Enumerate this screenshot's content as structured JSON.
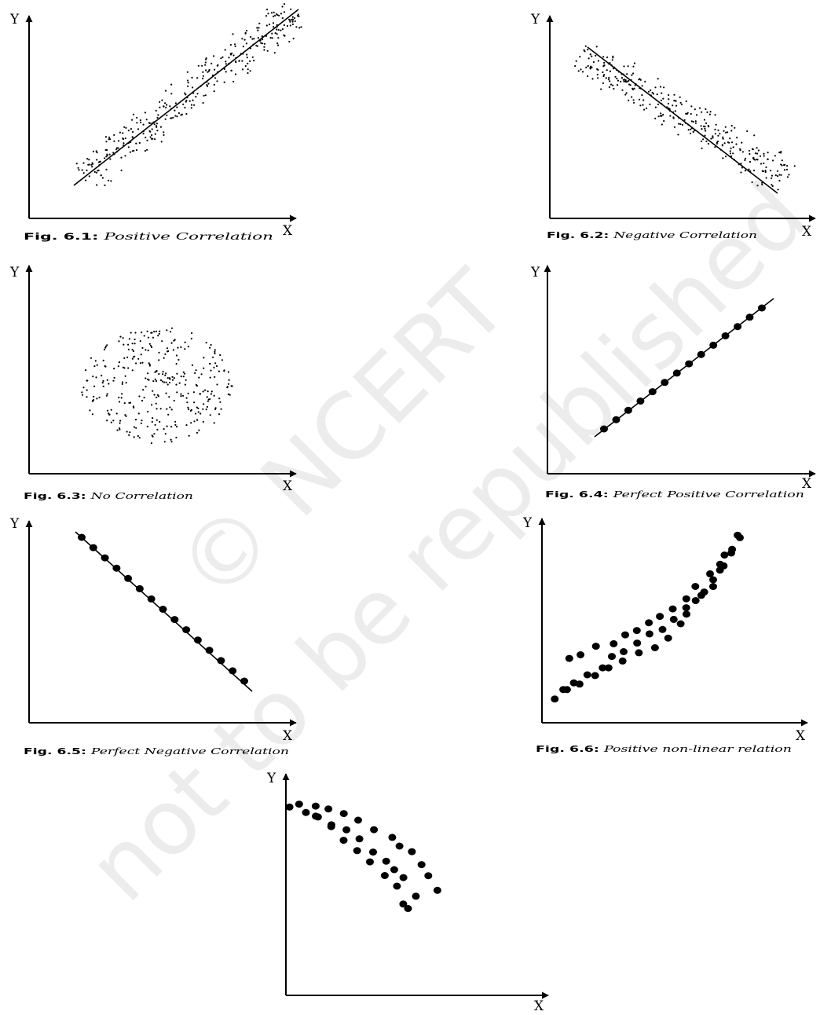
{
  "watermark": {
    "line1": "© NCERT",
    "line2": "not to be republished"
  },
  "chart_data": [
    {
      "id": "fig-6-1",
      "type": "scatter",
      "fig_number": "Fig. 6.1:",
      "caption": "Positive Correlation",
      "xlabel": "X",
      "ylabel": "Y",
      "has_trend_line": true,
      "marker": "small-dot",
      "pattern": "positive-linear-band"
    },
    {
      "id": "fig-6-2",
      "type": "scatter",
      "fig_number": "Fig. 6.2:",
      "caption": "Negative Correlation",
      "xlabel": "X",
      "ylabel": "Y",
      "has_trend_line": true,
      "marker": "small-dot",
      "pattern": "negative-linear-band"
    },
    {
      "id": "fig-6-3",
      "type": "scatter",
      "fig_number": "Fig. 6.3:",
      "caption": "No Correlation",
      "xlabel": "X",
      "ylabel": "Y",
      "has_trend_line": false,
      "marker": "small-dot",
      "pattern": "circular-cloud"
    },
    {
      "id": "fig-6-4",
      "type": "scatter",
      "fig_number": "Fig. 6.4:",
      "caption": "Perfect Positive Correlation",
      "xlabel": "X",
      "ylabel": "Y",
      "has_trend_line": true,
      "marker": "large-dot",
      "pattern": "points-on-rising-line"
    },
    {
      "id": "fig-6-5",
      "type": "scatter",
      "fig_number": "Fig. 6.5:",
      "caption": "Perfect Negative Correlation",
      "xlabel": "X",
      "ylabel": "Y",
      "has_trend_line": true,
      "marker": "large-dot",
      "pattern": "points-on-falling-line"
    },
    {
      "id": "fig-6-6",
      "type": "scatter",
      "fig_number": "Fig. 6.6:",
      "caption": "Positive non-linear relation",
      "xlabel": "X",
      "ylabel": "Y",
      "has_trend_line": false,
      "marker": "large-dot",
      "pattern": "rising-curved-band"
    },
    {
      "id": "fig-6-7",
      "type": "scatter",
      "fig_number": "",
      "caption": "",
      "xlabel": "X",
      "ylabel": "Y",
      "has_trend_line": false,
      "marker": "large-dot",
      "pattern": "falling-curved-band"
    }
  ]
}
